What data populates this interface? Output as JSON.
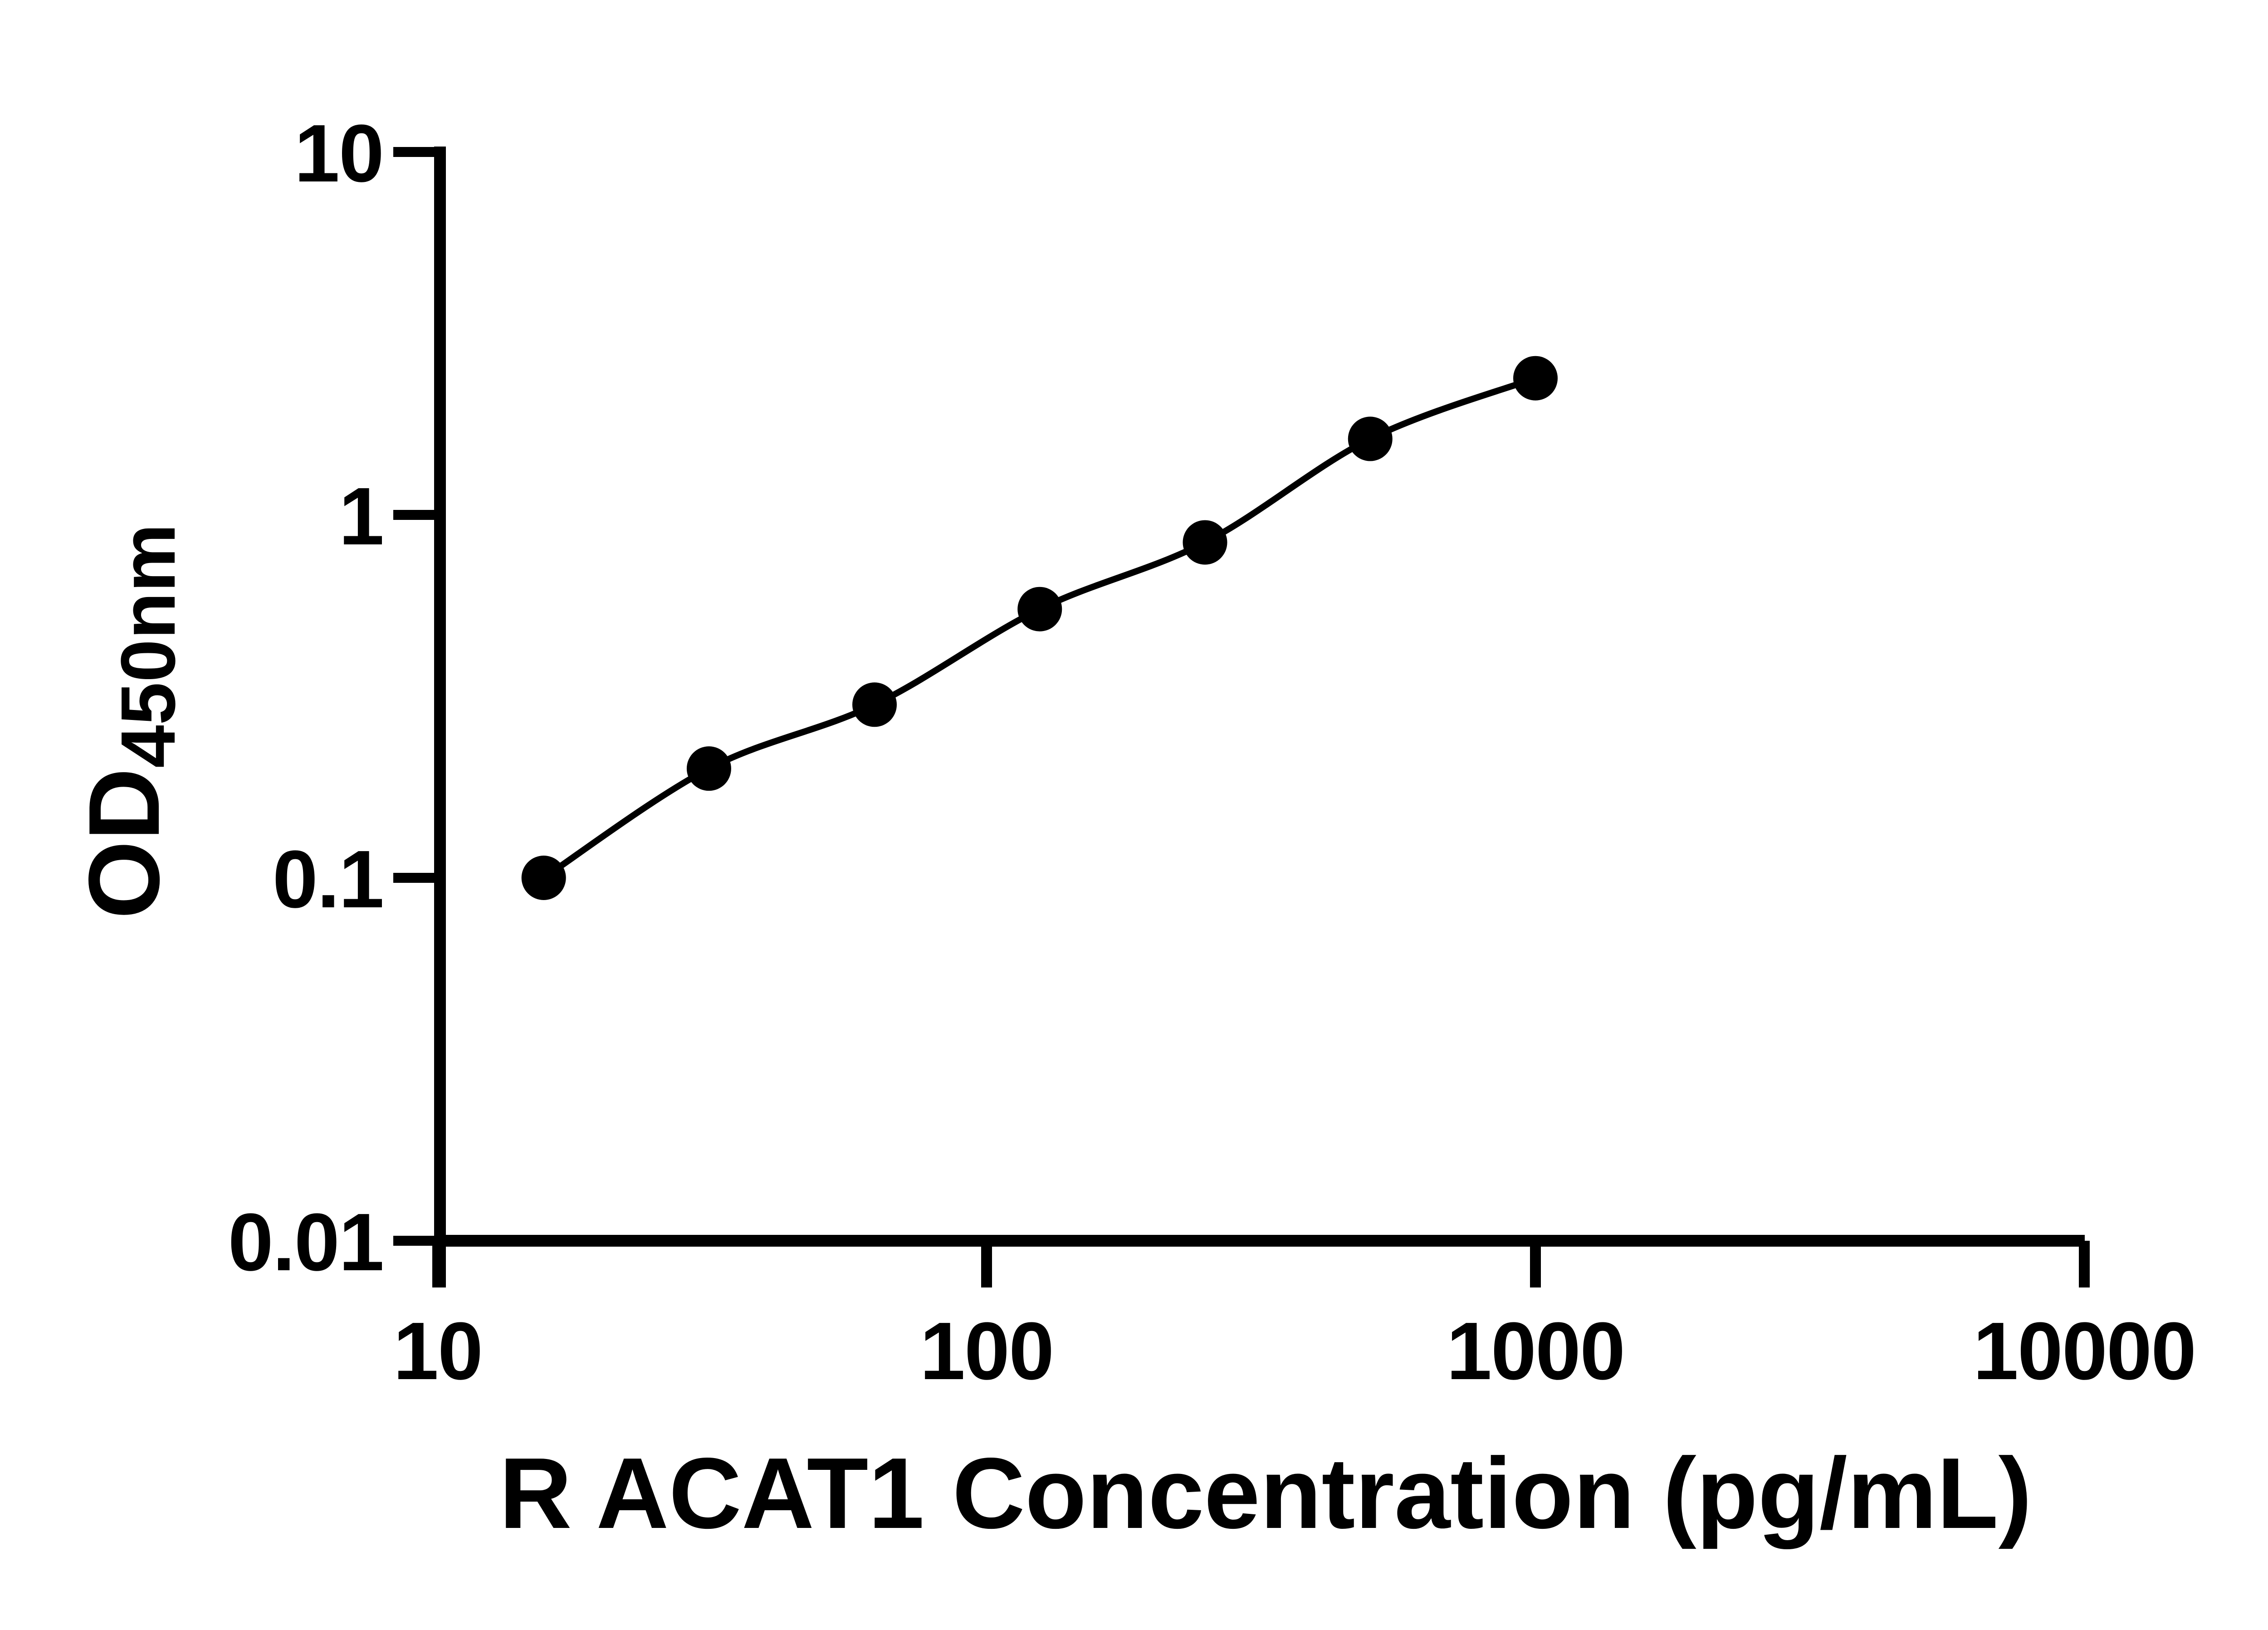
{
  "chart_data": {
    "type": "scatter",
    "subtype": "standard-curve-with-fit-line",
    "title": "",
    "xlabel": "R ACAT1 Concentration (pg/mL)",
    "ylabel_main": "OD",
    "ylabel_sub": "450nm",
    "x_scale": "log",
    "y_scale": "log",
    "xlim": [
      10,
      10000
    ],
    "ylim": [
      0.01,
      10
    ],
    "x_ticks": [
      {
        "value": 10,
        "label": "10"
      },
      {
        "value": 100,
        "label": "100"
      },
      {
        "value": 1000,
        "label": "1000"
      },
      {
        "value": 10000,
        "label": "10000"
      }
    ],
    "y_ticks": [
      {
        "value": 10,
        "label": "10"
      },
      {
        "value": 1,
        "label": "1"
      },
      {
        "value": 0.1,
        "label": "0.1"
      },
      {
        "value": 0.01,
        "label": "0.01"
      }
    ],
    "points": [
      {
        "x": 15.6,
        "y": 0.1
      },
      {
        "x": 31.2,
        "y": 0.2
      },
      {
        "x": 62.5,
        "y": 0.3
      },
      {
        "x": 125,
        "y": 0.55
      },
      {
        "x": 250,
        "y": 0.84
      },
      {
        "x": 500,
        "y": 1.62
      },
      {
        "x": 1000,
        "y": 2.38
      }
    ],
    "grid": false,
    "legend": "none",
    "marker_shape": "filled-circle",
    "marker_color": "#000000",
    "line_color": "#000000",
    "axis_color": "#000000",
    "background_color": "#ffffff"
  }
}
